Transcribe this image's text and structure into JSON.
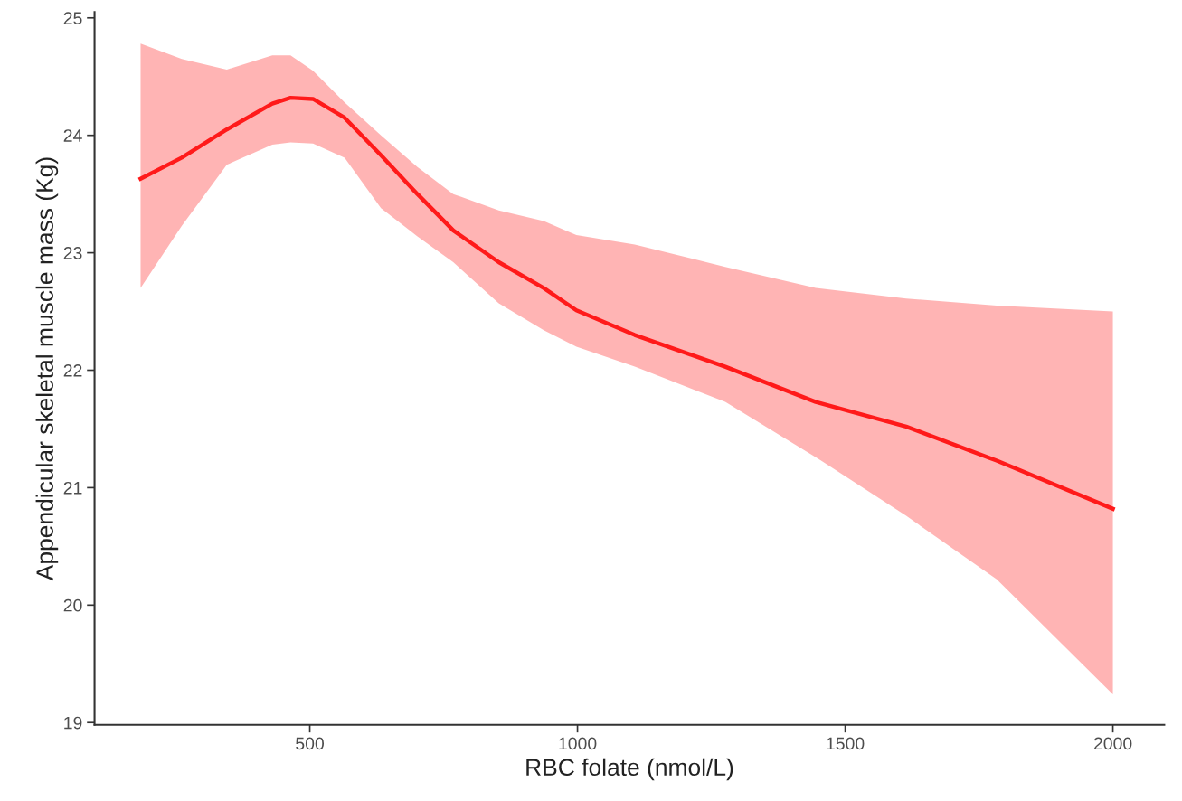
{
  "chart_data": {
    "type": "line",
    "xlabel": "RBC folate (nmol/L)",
    "ylabel": "Appendicular skeletal muscle mass (Kg)",
    "x": [
      184,
      261,
      345,
      430,
      464,
      506,
      565,
      633,
      701,
      768,
      853,
      937,
      998,
      1107,
      1276,
      1445,
      1614,
      1783,
      2000
    ],
    "series": [
      {
        "color": "#ff1a1a",
        "values": [
          23.63,
          23.81,
          24.05,
          24.27,
          24.32,
          24.31,
          24.15,
          23.83,
          23.5,
          23.19,
          22.92,
          22.7,
          22.51,
          22.3,
          22.03,
          21.73,
          21.52,
          21.23,
          20.82
        ],
        "upper": [
          24.78,
          24.65,
          24.56,
          24.68,
          24.68,
          24.55,
          24.28,
          24.0,
          23.73,
          23.5,
          23.36,
          23.27,
          23.15,
          23.07,
          22.88,
          22.7,
          22.61,
          22.55,
          22.5
        ],
        "lower": [
          22.7,
          23.23,
          23.75,
          23.92,
          23.94,
          23.93,
          23.81,
          23.38,
          23.14,
          22.92,
          22.57,
          22.34,
          22.2,
          22.03,
          21.73,
          21.26,
          20.76,
          20.22,
          19.24
        ]
      }
    ],
    "xlim": [
      98,
      2096
    ],
    "ylim": [
      18.98,
      25.05
    ],
    "xticks": [
      500,
      1000,
      1500,
      2000
    ],
    "yticks": [
      19,
      20,
      21,
      22,
      23,
      24,
      25
    ],
    "grid": false,
    "legend": false,
    "marker": "none",
    "line_style": "solid"
  }
}
